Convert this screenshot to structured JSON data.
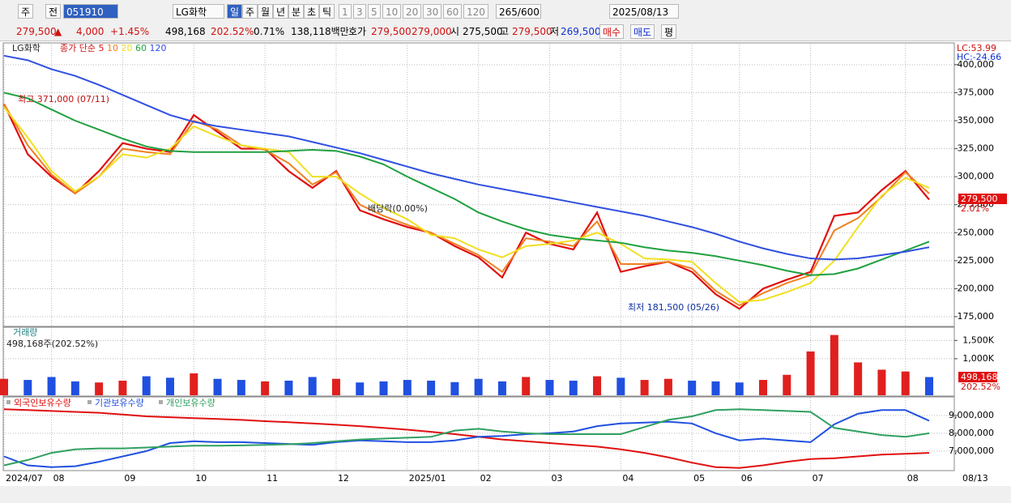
{
  "toolbar": {
    "market": "주",
    "prev": "전",
    "code": "051910",
    "name": "LG화학",
    "periods": [
      "일",
      "주",
      "월",
      "년",
      "분",
      "초",
      "틱"
    ],
    "intervals": [
      "1",
      "3",
      "5",
      "10",
      "20",
      "30",
      "60",
      "120"
    ],
    "count": "265",
    "max": "/600",
    "date": "2025/08/13"
  },
  "info_bar": {
    "price": "279,500",
    "arrow": "▲",
    "change": "4,000",
    "change_pct": "+1.45%",
    "volume": "498,168",
    "volume_pct": "202.52%",
    "turnover": "0.71%",
    "amount": "138,118백만",
    "quote_label": "호가",
    "ask": "279,500",
    "bid": "279,000",
    "open_label": "시",
    "open": "275,500",
    "high_label": "고",
    "high": "279,500",
    "low_label": "저",
    "low": "269,500",
    "buy": "매수",
    "sell": "매도",
    "eval": "평"
  },
  "x_axis": {
    "categories": [
      "2024/07",
      null,
      "08",
      null,
      null,
      "09",
      null,
      null,
      "10",
      null,
      null,
      "11",
      null,
      null,
      "12",
      null,
      null,
      "2025/01",
      null,
      null,
      "02",
      null,
      null,
      "03",
      null,
      null,
      "04",
      null,
      null,
      "05",
      null,
      "06",
      null,
      null,
      "07",
      null,
      null,
      null,
      "08",
      null
    ],
    "end_label": "08/13"
  },
  "chart_data": [
    {
      "type": "line",
      "label": "LG화학",
      "legend_prefix": "종가 단순",
      "ylim": [
        167000,
        418000
      ],
      "yticks": [
        {
          "value": 175000,
          "label": "175,000"
        },
        {
          "value": 200000,
          "label": "200,000"
        },
        {
          "value": 225000,
          "label": "225,000"
        },
        {
          "value": 250000,
          "label": "250,000"
        },
        {
          "value": 275000,
          "label": "275,000"
        },
        {
          "value": 300000,
          "label": "300,000"
        },
        {
          "value": 325000,
          "label": "325,000"
        },
        {
          "value": 350000,
          "label": "350,000"
        },
        {
          "value": 375000,
          "label": "375,000"
        },
        {
          "value": 400000,
          "label": "400,000"
        }
      ],
      "series": [
        {
          "name": "5",
          "color": "#e01010",
          "values": [
            365000,
            320000,
            300000,
            285000,
            305000,
            330000,
            325000,
            322000,
            355000,
            340000,
            325000,
            325000,
            305000,
            290000,
            305000,
            270000,
            262000,
            255000,
            250000,
            238000,
            228000,
            210000,
            250000,
            240000,
            235000,
            268000,
            215000,
            220000,
            224000,
            215000,
            195000,
            182000,
            200000,
            208000,
            215000,
            265000,
            268000,
            288000,
            305000,
            279500
          ]
        },
        {
          "name": "10",
          "color": "#f08020",
          "values": [
            365000,
            328000,
            302000,
            285000,
            300000,
            325000,
            322000,
            320000,
            350000,
            342000,
            328000,
            324000,
            312000,
            293000,
            304000,
            275000,
            265000,
            257000,
            250000,
            240000,
            230000,
            215000,
            245000,
            242000,
            238000,
            260000,
            222000,
            222000,
            224000,
            218000,
            198000,
            185000,
            196000,
            205000,
            212000,
            252000,
            263000,
            282000,
            304000,
            285000
          ]
        },
        {
          "name": "20",
          "color": "#f0e020",
          "values": [
            362000,
            335000,
            305000,
            287000,
            300000,
            320000,
            317000,
            325000,
            345000,
            336000,
            328000,
            325000,
            322000,
            300000,
            300000,
            285000,
            272000,
            262000,
            248000,
            245000,
            235000,
            228000,
            238000,
            240000,
            243000,
            250000,
            240000,
            227000,
            226000,
            224000,
            205000,
            188000,
            190000,
            197000,
            205000,
            225000,
            255000,
            283000,
            299000,
            290000
          ]
        },
        {
          "name": "60",
          "color": "#20a040",
          "values": [
            375000,
            370000,
            360000,
            350000,
            342000,
            334000,
            327000,
            323000,
            322000,
            322000,
            322000,
            322000,
            323000,
            324000,
            323000,
            318000,
            311000,
            300000,
            290000,
            280000,
            268000,
            260000,
            253000,
            248000,
            245000,
            243000,
            241000,
            237000,
            234000,
            232000,
            229000,
            225000,
            221000,
            216000,
            212000,
            213000,
            218000,
            226000,
            234000,
            242000
          ]
        },
        {
          "name": "120",
          "color": "#3050e0",
          "values": [
            408000,
            404000,
            396000,
            390000,
            382000,
            373000,
            364000,
            355000,
            349000,
            345000,
            342000,
            339000,
            336000,
            331000,
            326000,
            321000,
            315000,
            309000,
            303000,
            298000,
            293000,
            289000,
            285000,
            281000,
            277000,
            273000,
            269000,
            265000,
            260000,
            255000,
            249000,
            242000,
            236000,
            231000,
            227000,
            226000,
            227000,
            230000,
            233000,
            237000
          ]
        }
      ],
      "annotations": [
        "최고 371,000 (07/11)",
        "배당락(0.00%)",
        "최저 181,500 (05/26)"
      ],
      "corner_labels": [
        "LC:53.99",
        "HC:-24.66"
      ],
      "last_label": "279,500",
      "last_change": "2.01%"
    },
    {
      "type": "bar",
      "title": "거래량",
      "subtitle": "498,168주(202.52%)",
      "ylim": [
        0,
        1840000
      ],
      "yticks": [
        {
          "value": 1000000,
          "label": "1,000K"
        },
        {
          "value": 1500000,
          "label": "1,500K"
        }
      ],
      "up_color": "#e0201e",
      "down_color": "#2050e0",
      "values": [
        450000,
        420000,
        500000,
        380000,
        350000,
        400000,
        520000,
        480000,
        600000,
        450000,
        420000,
        380000,
        400000,
        500000,
        450000,
        350000,
        380000,
        420000,
        400000,
        360000,
        450000,
        380000,
        500000,
        420000,
        400000,
        520000,
        480000,
        420000,
        450000,
        400000,
        380000,
        350000,
        420000,
        560000,
        1200000,
        1650000,
        900000,
        700000,
        650000,
        498168
      ],
      "last_label": "498,168",
      "last_change": "202.52%"
    },
    {
      "type": "line",
      "ylim": [
        5950000,
        9950000
      ],
      "yticks": [
        {
          "value": 7000000,
          "label": "7,000,000"
        },
        {
          "value": 8000000,
          "label": "8,000,000"
        },
        {
          "value": 9000000,
          "label": "9,000,000"
        }
      ],
      "series": [
        {
          "name": "외국인보유수량",
          "color": "#e01010",
          "values": [
            9350000,
            9300000,
            9250000,
            9200000,
            9150000,
            9050000,
            8950000,
            8900000,
            8850000,
            8800000,
            8750000,
            8680000,
            8620000,
            8550000,
            8480000,
            8400000,
            8300000,
            8200000,
            8080000,
            7950000,
            7800000,
            7650000,
            7550000,
            7450000,
            7350000,
            7250000,
            7100000,
            6900000,
            6650000,
            6350000,
            6100000,
            6050000,
            6200000,
            6400000,
            6550000,
            6600000,
            6700000,
            6800000,
            6850000,
            6900000
          ]
        },
        {
          "name": "기관보유수량",
          "color": "#2050e0",
          "values": [
            6700000,
            6200000,
            6100000,
            6150000,
            6400000,
            6700000,
            7000000,
            7450000,
            7550000,
            7500000,
            7500000,
            7450000,
            7400000,
            7350000,
            7500000,
            7600000,
            7550000,
            7500000,
            7500000,
            7600000,
            7800000,
            7850000,
            7950000,
            8000000,
            8100000,
            8400000,
            8550000,
            8600000,
            8650000,
            8550000,
            8000000,
            7600000,
            7700000,
            7600000,
            7500000,
            8500000,
            9100000,
            9300000,
            9300000,
            8700000
          ]
        },
        {
          "name": "개인보유수량",
          "color": "#30a060",
          "values": [
            6200000,
            6500000,
            6900000,
            7100000,
            7150000,
            7150000,
            7200000,
            7250000,
            7300000,
            7300000,
            7320000,
            7350000,
            7380000,
            7450000,
            7550000,
            7650000,
            7700000,
            7750000,
            7800000,
            8150000,
            8250000,
            8100000,
            8000000,
            7950000,
            7950000,
            7950000,
            7950000,
            8350000,
            8750000,
            8950000,
            9300000,
            9350000,
            9300000,
            9250000,
            9200000,
            8300000,
            8100000,
            7900000,
            7800000,
            8000000
          ]
        }
      ]
    }
  ]
}
